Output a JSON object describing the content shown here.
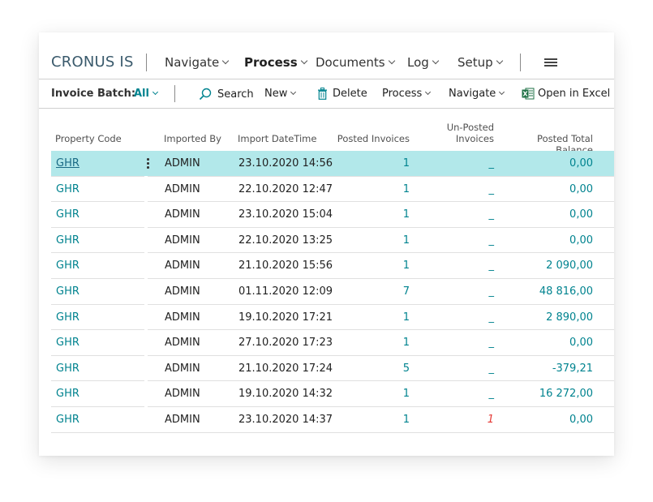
{
  "app_title": "CRONUS IS",
  "nav": [
    {
      "label": "Navigate",
      "bold": false
    },
    {
      "label": "Process",
      "bold": true
    },
    {
      "label": "Documents",
      "bold": false
    },
    {
      "label": "Log",
      "bold": false
    },
    {
      "label": "Setup",
      "bold": false
    }
  ],
  "actionbar": {
    "batch_label": "Invoice Batch:",
    "batch_value": "All",
    "search": "Search",
    "new": "New",
    "delete": "Delete",
    "process": "Process",
    "navigate": "Navigate",
    "open_in_excel": "Open in Excel"
  },
  "columns": {
    "property_code": "Property Code",
    "imported_by": "Imported By",
    "import_datetime": "Import DateTime",
    "posted_invoices": "Posted Invoices",
    "unposted_line1": "Un-Posted",
    "unposted_line2": "Invoices",
    "posted_total_balance": "Posted Total Balance"
  },
  "rows": [
    {
      "code": "GHR",
      "by": "ADMIN",
      "dt": "23.10.2020 14:56",
      "posted": "1",
      "unposted": "_",
      "balance": "0,00"
    },
    {
      "code": "GHR",
      "by": "ADMIN",
      "dt": "22.10.2020 12:47",
      "posted": "1",
      "unposted": "_",
      "balance": "0,00"
    },
    {
      "code": "GHR",
      "by": "ADMIN",
      "dt": "23.10.2020 15:04",
      "posted": "1",
      "unposted": "_",
      "balance": "0,00"
    },
    {
      "code": "GHR",
      "by": "ADMIN",
      "dt": "22.10.2020 13:25",
      "posted": "1",
      "unposted": "_",
      "balance": "0,00"
    },
    {
      "code": "GHR",
      "by": "ADMIN",
      "dt": "21.10.2020 15:56",
      "posted": "1",
      "unposted": "_",
      "balance": "2 090,00"
    },
    {
      "code": "GHR",
      "by": "ADMIN",
      "dt": "01.11.2020 12:09",
      "posted": "7",
      "unposted": "_",
      "balance": "48 816,00"
    },
    {
      "code": "GHR",
      "by": "ADMIN",
      "dt": "19.10.2020 17:21",
      "posted": "1",
      "unposted": "_",
      "balance": "2 890,00"
    },
    {
      "code": "GHR",
      "by": "ADMIN",
      "dt": "27.10.2020 17:23",
      "posted": "1",
      "unposted": "_",
      "balance": "0,00"
    },
    {
      "code": "GHR",
      "by": "ADMIN",
      "dt": "21.10.2020 17:24",
      "posted": "5",
      "unposted": "_",
      "balance": "-379,21"
    },
    {
      "code": "GHR",
      "by": "ADMIN",
      "dt": "19.10.2020 14:32",
      "posted": "1",
      "unposted": "_",
      "balance": "16 272,00"
    },
    {
      "code": "GHR",
      "by": "ADMIN",
      "dt": "23.10.2020 14:37",
      "posted": "1",
      "unposted": "1",
      "balance": "0,00"
    }
  ],
  "selected_row": 0,
  "colors": {
    "accent": "#00838f",
    "selected_row": "#b2e8ea",
    "warning": "#e53935",
    "excel_green": "#1e7145"
  },
  "icons": [
    "search-icon",
    "trash-icon",
    "excel-icon",
    "hamburger-menu-icon",
    "more-options-icon",
    "chevron-down-icon"
  ]
}
